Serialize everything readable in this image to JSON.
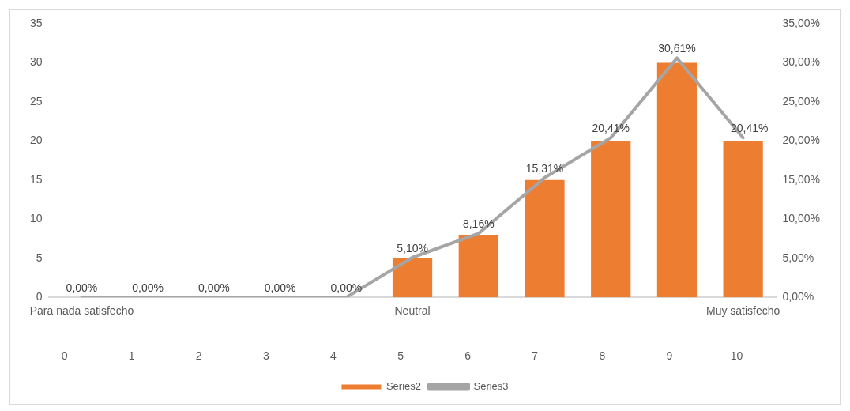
{
  "chart_data": {
    "type": "bar",
    "categories": [
      "Para nada satisfecho",
      null,
      null,
      null,
      null,
      "Neutral",
      null,
      null,
      null,
      null,
      "Muy satisfecho"
    ],
    "series": [
      {
        "name": "Series2",
        "color": "#ed7d31",
        "values": [
          0,
          0,
          0,
          0,
          0,
          5,
          8,
          15,
          20,
          30,
          20
        ]
      },
      {
        "name": "Series3",
        "type": "line",
        "axis": "y2",
        "color": "#a5a5a5",
        "values": [
          0,
          0,
          0,
          0,
          0,
          5.1,
          8.16,
          15.31,
          20.41,
          30.61,
          20.41
        ],
        "value_labels": [
          "0,00%",
          "0,00%",
          "0,00%",
          "0,00%",
          "0,00%",
          "5,10%",
          "8,16%",
          "15,31%",
          "20,41%",
          "30,61%",
          "20,41%"
        ]
      }
    ],
    "ylim": [
      0,
      35
    ],
    "yticks": [
      0,
      5,
      10,
      15,
      20,
      25,
      30,
      35
    ],
    "y2lim": [
      0,
      35
    ],
    "y2ticks": [
      {
        "value": 0,
        "label": "0,00%"
      },
      {
        "value": 5,
        "label": "5,00%"
      },
      {
        "value": 10,
        "label": "10,00%"
      },
      {
        "value": 15,
        "label": "15,00%"
      },
      {
        "value": 20,
        "label": "20,00%"
      },
      {
        "value": 25,
        "label": "25,00%"
      },
      {
        "value": 30,
        "label": "30,00%"
      },
      {
        "value": 35,
        "label": "35,00%"
      }
    ],
    "annotations": [
      "0",
      "1",
      "2",
      "3",
      "4",
      "5",
      "6",
      "7",
      "8",
      "9",
      "10"
    ],
    "grid": false,
    "legend": "bottom",
    "marker": "none",
    "line_style": "solid"
  }
}
